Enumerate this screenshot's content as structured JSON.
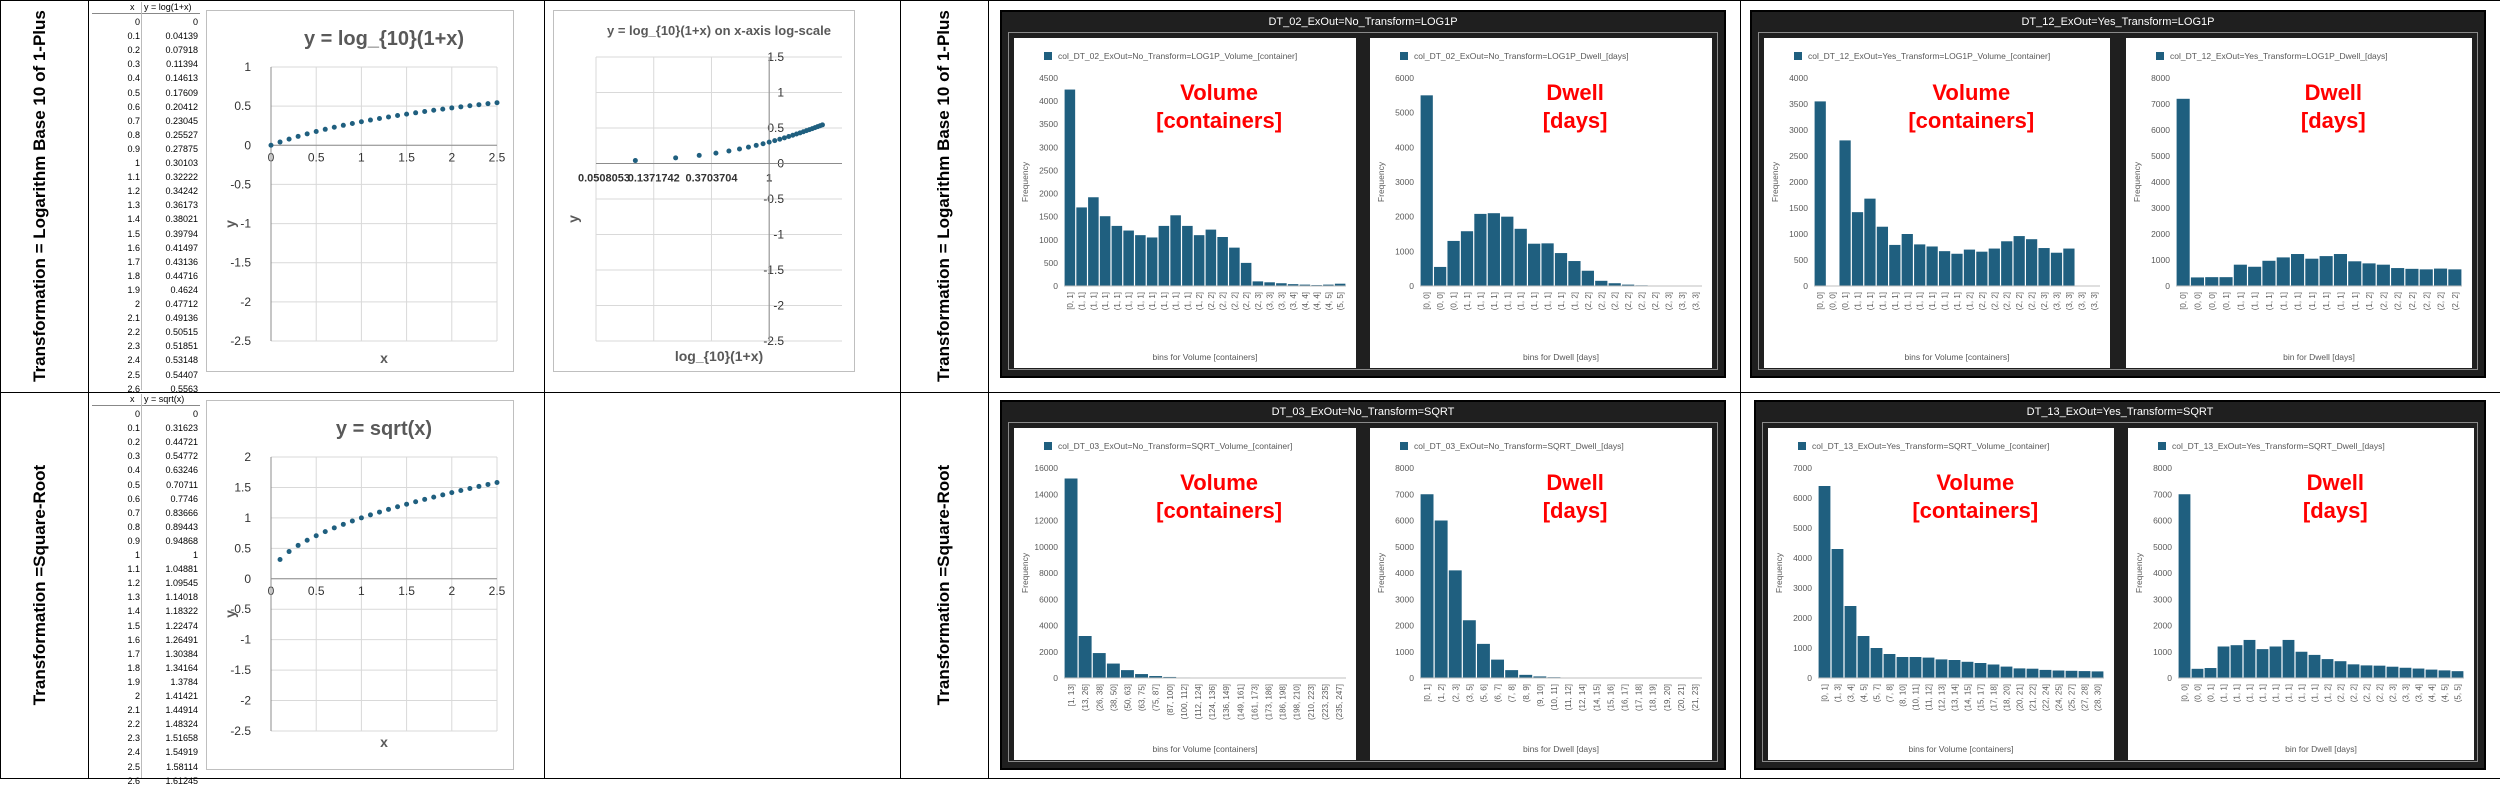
{
  "rows": [
    {
      "label": "Transformation = Logarithm Base 10 of 1-Plus"
    },
    {
      "label": "Transformation =Square-Root"
    }
  ],
  "tables": [
    {
      "header_x": "x",
      "header_y": "y = log(1+x)",
      "rows": [
        [
          "0",
          "0"
        ],
        [
          "0.1",
          "0.04139"
        ],
        [
          "0.2",
          "0.07918"
        ],
        [
          "0.3",
          "0.11394"
        ],
        [
          "0.4",
          "0.14613"
        ],
        [
          "0.5",
          "0.17609"
        ],
        [
          "0.6",
          "0.20412"
        ],
        [
          "0.7",
          "0.23045"
        ],
        [
          "0.8",
          "0.25527"
        ],
        [
          "0.9",
          "0.27875"
        ],
        [
          "1",
          "0.30103"
        ],
        [
          "1.1",
          "0.32222"
        ],
        [
          "1.2",
          "0.34242"
        ],
        [
          "1.3",
          "0.36173"
        ],
        [
          "1.4",
          "0.38021"
        ],
        [
          "1.5",
          "0.39794"
        ],
        [
          "1.6",
          "0.41497"
        ],
        [
          "1.7",
          "0.43136"
        ],
        [
          "1.8",
          "0.44716"
        ],
        [
          "1.9",
          "0.4624"
        ],
        [
          "2",
          "0.47712"
        ],
        [
          "2.1",
          "0.49136"
        ],
        [
          "2.2",
          "0.50515"
        ],
        [
          "2.3",
          "0.51851"
        ],
        [
          "2.4",
          "0.53148"
        ],
        [
          "2.5",
          "0.54407"
        ],
        [
          "2.6",
          "0.5563"
        ]
      ]
    },
    {
      "header_x": "x",
      "header_y": "y = sqrt(x)",
      "rows": [
        [
          "0",
          "0"
        ],
        [
          "0.1",
          "0.31623"
        ],
        [
          "0.2",
          "0.44721"
        ],
        [
          "0.3",
          "0.54772"
        ],
        [
          "0.4",
          "0.63246"
        ],
        [
          "0.5",
          "0.70711"
        ],
        [
          "0.6",
          "0.7746"
        ],
        [
          "0.7",
          "0.83666"
        ],
        [
          "0.8",
          "0.89443"
        ],
        [
          "0.9",
          "0.94868"
        ],
        [
          "1",
          "1"
        ],
        [
          "1.1",
          "1.04881"
        ],
        [
          "1.2",
          "1.09545"
        ],
        [
          "1.3",
          "1.14018"
        ],
        [
          "1.4",
          "1.18322"
        ],
        [
          "1.5",
          "1.22474"
        ],
        [
          "1.6",
          "1.26491"
        ],
        [
          "1.7",
          "1.30384"
        ],
        [
          "1.8",
          "1.34164"
        ],
        [
          "1.9",
          "1.3784"
        ],
        [
          "2",
          "1.41421"
        ],
        [
          "2.1",
          "1.44914"
        ],
        [
          "2.2",
          "1.48324"
        ],
        [
          "2.3",
          "1.51658"
        ],
        [
          "2.4",
          "1.54919"
        ],
        [
          "2.5",
          "1.58114"
        ],
        [
          "2.6",
          "1.61245"
        ]
      ]
    }
  ],
  "panels": [
    {
      "title": "DT_02_ExOut=No_Transform=LOG1P"
    },
    {
      "title": "DT_12_ExOut=Yes_Transform=LOG1P"
    },
    {
      "title": "DT_03_ExOut=No_Transform=SQRT"
    },
    {
      "title": "DT_13_ExOut=Yes_Transform=SQRT"
    }
  ],
  "colors": {
    "bar": "#1f5f7f",
    "marker": "#1f5f7f",
    "overlay": "#ff0000",
    "panel": "#1f1f1f"
  },
  "chart_data": [
    {
      "type": "scatter",
      "title": "y = log_{10}(1+x)",
      "xlabel": "x",
      "ylabel": "y",
      "xlim": [
        0,
        2.5
      ],
      "ylim": [
        -2.5,
        1
      ],
      "xticks": [
        "0",
        "0.5",
        "1",
        "1.5",
        "2",
        "2.5"
      ],
      "yticks": [
        "1",
        "0.5",
        "0",
        "-0.5",
        "-1",
        "-1.5",
        "-2",
        "-2.5"
      ],
      "grid": true,
      "x": [
        0,
        0.1,
        0.2,
        0.3,
        0.4,
        0.5,
        0.6,
        0.7,
        0.8,
        0.9,
        1,
        1.1,
        1.2,
        1.3,
        1.4,
        1.5,
        1.6,
        1.7,
        1.8,
        1.9,
        2,
        2.1,
        2.2,
        2.3,
        2.4,
        2.5
      ],
      "y": [
        0,
        0.04139,
        0.07918,
        0.11394,
        0.14613,
        0.17609,
        0.20412,
        0.23045,
        0.25527,
        0.27875,
        0.30103,
        0.32222,
        0.34242,
        0.36173,
        0.38021,
        0.39794,
        0.41497,
        0.43136,
        0.44716,
        0.4624,
        0.47712,
        0.49136,
        0.50515,
        0.51851,
        0.53148,
        0.54407
      ]
    },
    {
      "type": "scatter",
      "title": "y = log_{10}(1+x) on x-axis log-scale",
      "xlabel": "log_{10}(1+x)",
      "ylabel": "y",
      "xscale": "log",
      "xlim": [
        0.0508053,
        3.5
      ],
      "ylim": [
        -2.5,
        1.5
      ],
      "xticks": [
        "0.0508053",
        "0.1371742",
        "0.3703704",
        "1"
      ],
      "yticks": [
        "1.5",
        "1",
        "0.5",
        "0",
        "-0.5",
        "-1",
        "-1.5",
        "-2",
        "-2.5"
      ],
      "grid": true,
      "x": [
        0.1,
        0.2,
        0.3,
        0.4,
        0.5,
        0.6,
        0.7,
        0.8,
        0.9,
        1,
        1.1,
        1.2,
        1.3,
        1.4,
        1.5,
        1.6,
        1.7,
        1.8,
        1.9,
        2,
        2.1,
        2.2,
        2.3,
        2.4,
        2.5
      ],
      "y": [
        0.04139,
        0.07918,
        0.11394,
        0.14613,
        0.17609,
        0.20412,
        0.23045,
        0.25527,
        0.27875,
        0.30103,
        0.32222,
        0.34242,
        0.36173,
        0.38021,
        0.39794,
        0.41497,
        0.43136,
        0.44716,
        0.4624,
        0.47712,
        0.49136,
        0.50515,
        0.51851,
        0.53148,
        0.54407
      ]
    },
    {
      "type": "scatter",
      "title": "y = sqrt(x)",
      "xlabel": "x",
      "ylabel": "y",
      "xlim": [
        0,
        2.5
      ],
      "ylim": [
        -2.5,
        2
      ],
      "xticks": [
        "0",
        "0.5",
        "1",
        "1.5",
        "2",
        "2.5"
      ],
      "yticks": [
        "2",
        "1.5",
        "1",
        "0.5",
        "0",
        "-0.5",
        "-1",
        "-1.5",
        "-2",
        "-2.5"
      ],
      "grid": true,
      "x": [
        0.1,
        0.2,
        0.3,
        0.4,
        0.5,
        0.6,
        0.7,
        0.8,
        0.9,
        1,
        1.1,
        1.2,
        1.3,
        1.4,
        1.5,
        1.6,
        1.7,
        1.8,
        1.9,
        2,
        2.1,
        2.2,
        2.3,
        2.4,
        2.5
      ],
      "y": [
        0.31623,
        0.44721,
        0.54772,
        0.63246,
        0.70711,
        0.7746,
        0.83666,
        0.89443,
        0.94868,
        1,
        1.04881,
        1.09545,
        1.14018,
        1.18322,
        1.22474,
        1.26491,
        1.30384,
        1.34164,
        1.3784,
        1.41421,
        1.44914,
        1.48324,
        1.51658,
        1.54919,
        1.58114
      ]
    },
    {
      "type": "bar",
      "legend": "col_DT_02_ExOut=No_Transform=LOG1P_Volume_[container]",
      "overlay": [
        "Volume",
        "[containers]"
      ],
      "xlabel": "bins for Volume [containers]",
      "ylabel": "Frequency",
      "ylim": [
        0,
        4500
      ],
      "yticks": [
        "4500",
        "4000",
        "3500",
        "3000",
        "2500",
        "2000",
        "1500",
        "1000",
        "500",
        "0"
      ],
      "categories": [
        "[0, 1]",
        "(1, 1]",
        "(1, 1]",
        "(1, 1]",
        "(1, 1]",
        "(1, 1]",
        "(1, 1]",
        "(1, 1]",
        "(1, 1]",
        "(1, 1]",
        "(1, 1]",
        "(1, 2]",
        "(2, 2]",
        "(2, 2]",
        "(2, 2]",
        "(2, 2]",
        "(2, 3]",
        "(3, 3]",
        "(3, 3]",
        "(3, 4]",
        "(4, 4]",
        "(4, 4]",
        "(4, 5]",
        "(5, 5]"
      ],
      "values": [
        4250,
        1700,
        1920,
        1510,
        1300,
        1200,
        1100,
        1050,
        1300,
        1530,
        1300,
        1100,
        1220,
        1060,
        830,
        500,
        100,
        80,
        60,
        40,
        30,
        20,
        30,
        50
      ]
    },
    {
      "type": "bar",
      "legend": "col_DT_02_ExOut=No_Transform=LOG1P_Dwell_[days]",
      "overlay": [
        "Dwell",
        "[days]"
      ],
      "xlabel": "bins for Dwell [days]",
      "ylabel": "Frequency",
      "ylim": [
        0,
        6000
      ],
      "yticks": [
        "6000",
        "5000",
        "4000",
        "3000",
        "2000",
        "1000",
        "0"
      ],
      "categories": [
        "[0, 0]",
        "(0, 0]",
        "(0, 1]",
        "(1, 1]",
        "(1, 1]",
        "(1, 1]",
        "(1, 1]",
        "(1, 1]",
        "(1, 1]",
        "(1, 1]",
        "(1, 1]",
        "(1, 2]",
        "(2, 2]",
        "(2, 2]",
        "(2, 2]",
        "(2, 2]",
        "(2, 2]",
        "(2, 2]",
        "(2, 3]",
        "(3, 3]",
        "(3, 3]"
      ],
      "values": [
        5500,
        550,
        1300,
        1580,
        2080,
        2100,
        2000,
        1650,
        1220,
        1230,
        950,
        720,
        440,
        150,
        80,
        40,
        20,
        10,
        5,
        5,
        5
      ]
    },
    {
      "type": "bar",
      "legend": "col_DT_12_ExOut=Yes_Transform=LOG1P_Volume_[container]",
      "overlay": [
        "Volume",
        "[containers]"
      ],
      "xlabel": "bins for Volume [containers]",
      "ylabel": "Frequency",
      "ylim": [
        0,
        4000
      ],
      "yticks": [
        "4000",
        "3500",
        "3000",
        "2500",
        "2000",
        "1500",
        "1000",
        "500",
        "0"
      ],
      "categories": [
        "[0, 0]",
        "(0, 0]",
        "(0, 1]",
        "(1, 1]",
        "(1, 1]",
        "(1, 1]",
        "(1, 1]",
        "(1, 1]",
        "(1, 1]",
        "(1, 1]",
        "(1, 1]",
        "(1, 1]",
        "(1, 2]",
        "(2, 2]",
        "(2, 2]",
        "(2, 2]",
        "(2, 2]",
        "(2, 2]",
        "(2, 3]",
        "(3, 3]",
        "(3, 3]",
        "(3, 3]",
        "(3, 3]"
      ],
      "values": [
        3550,
        0,
        2800,
        1420,
        1680,
        1140,
        790,
        1000,
        800,
        760,
        670,
        620,
        700,
        660,
        720,
        860,
        960,
        900,
        730,
        640,
        720,
        0,
        0
      ]
    },
    {
      "type": "bar",
      "legend": "col_DT_12_ExOut=Yes_Transform=LOG1P_Dwell_[days]",
      "overlay": [
        "Dwell",
        "[days]"
      ],
      "xlabel": "bin for Dwell [days]",
      "ylabel": "Frequency",
      "ylim": [
        0,
        8000
      ],
      "yticks": [
        "8000",
        "7000",
        "6000",
        "5000",
        "4000",
        "3000",
        "2000",
        "1000",
        "0"
      ],
      "categories": [
        "[0, 0]",
        "(0, 0]",
        "(0, 0]",
        "(0, 1]",
        "(1, 1]",
        "(1, 1]",
        "(1, 1]",
        "(1, 1]",
        "(1, 1]",
        "(1, 1]",
        "(1, 1]",
        "(1, 1]",
        "(1, 1]",
        "(1, 2]",
        "(2, 2]",
        "(2, 2]",
        "(2, 2]",
        "(2, 2]",
        "(2, 2]",
        "(2, 2]"
      ],
      "values": [
        7200,
        330,
        340,
        340,
        820,
        740,
        970,
        1100,
        1230,
        1050,
        1150,
        1230,
        950,
        870,
        820,
        690,
        660,
        640,
        670,
        640
      ]
    },
    {
      "type": "bar",
      "legend": "col_DT_03_ExOut=No_Transform=SQRT_Volume_[container]",
      "overlay": [
        "Volume",
        "[containers]"
      ],
      "xlabel": "bins for Volume [containers]",
      "ylabel": "Frequency",
      "ylim": [
        0,
        16000
      ],
      "yticks": [
        "16000",
        "14000",
        "12000",
        "10000",
        "8000",
        "6000",
        "4000",
        "2000",
        "0"
      ],
      "categories": [
        "[1, 13]",
        "(13, 26]",
        "(26, 38]",
        "(38, 50]",
        "(50, 63]",
        "(63, 75]",
        "(75, 87]",
        "(87, 100]",
        "(100, 112]",
        "(112, 124]",
        "(124, 136]",
        "(136, 149]",
        "(149, 161]",
        "(161, 173]",
        "(173, 186]",
        "(186, 198]",
        "(198, 210]",
        "(210, 223]",
        "(223, 235]",
        "(235, 247]"
      ],
      "values": [
        15200,
        3200,
        1900,
        1100,
        600,
        300,
        150,
        80,
        40,
        20,
        10,
        5,
        5,
        3,
        2,
        2,
        1,
        1,
        1,
        1
      ]
    },
    {
      "type": "bar",
      "legend": "col_DT_03_ExOut=No_Transform=SQRT_Dwell_[days]",
      "overlay": [
        "Dwell",
        "[days]"
      ],
      "xlabel": "bins for Dwell [days]",
      "ylabel": "Frequency",
      "ylim": [
        0,
        8000
      ],
      "yticks": [
        "8000",
        "7000",
        "6000",
        "5000",
        "4000",
        "3000",
        "2000",
        "1000",
        "0"
      ],
      "categories": [
        "[0, 1]",
        "(1, 2]",
        "(2, 3]",
        "(3, 5]",
        "(5, 6]",
        "(6, 7]",
        "(7, 8]",
        "(8, 9]",
        "(9, 10]",
        "(10, 11]",
        "(11, 12]",
        "(12, 14]",
        "(14, 15]",
        "(15, 16]",
        "(16, 17]",
        "(17, 18]",
        "(18, 19]",
        "(19, 20]",
        "(20, 21]",
        "(21, 23]"
      ],
      "values": [
        7000,
        6000,
        4100,
        2200,
        1300,
        700,
        300,
        120,
        60,
        30,
        15,
        8,
        5,
        3,
        2,
        1,
        1,
        1,
        1,
        1
      ]
    },
    {
      "type": "bar",
      "legend": "col_DT_13_ExOut=Yes_Transform=SQRT_Volume_[container]",
      "overlay": [
        "Volume",
        "[containers]"
      ],
      "xlabel": "bins for Volume [containers]",
      "ylabel": "Frequency",
      "ylim": [
        0,
        7000
      ],
      "yticks": [
        "7000",
        "6000",
        "5000",
        "4000",
        "3000",
        "2000",
        "1000",
        "0"
      ],
      "categories": [
        "[0, 1]",
        "(1, 3]",
        "(3, 4]",
        "(4, 5]",
        "(5, 7]",
        "(7, 8]",
        "(8, 10]",
        "(10, 11]",
        "(11, 12]",
        "(12, 13]",
        "(13, 14]",
        "(14, 15]",
        "(15, 17]",
        "(17, 18]",
        "(18, 20]",
        "(20, 21]",
        "(21, 22]",
        "(22, 24]",
        "(24, 25]",
        "(25, 27]",
        "(27, 28]",
        "(28, 30]"
      ],
      "values": [
        6400,
        4300,
        2400,
        1400,
        1000,
        800,
        700,
        700,
        680,
        620,
        600,
        540,
        500,
        450,
        380,
        320,
        310,
        270,
        250,
        240,
        230,
        220
      ]
    },
    {
      "type": "bar",
      "legend": "col_DT_13_ExOut=Yes_Transform=SQRT_Dwell_[days]",
      "overlay": [
        "Dwell",
        "[days]"
      ],
      "xlabel": "bin for Dwell [days]",
      "ylabel": "Frequency",
      "ylim": [
        0,
        8000
      ],
      "yticks": [
        "8000",
        "7000",
        "6000",
        "5000",
        "4000",
        "3000",
        "2000",
        "1000",
        "0"
      ],
      "categories": [
        "[0, 0]",
        "(0, 0]",
        "(0, 1]",
        "(1, 1]",
        "(1, 1]",
        "(1, 1]",
        "(1, 1]",
        "(1, 1]",
        "(1, 1]",
        "(1, 1]",
        "(1, 1]",
        "(1, 2]",
        "(2, 2]",
        "(2, 2]",
        "(2, 2]",
        "(2, 2]",
        "(2, 3]",
        "(3, 3]",
        "(3, 4]",
        "(4, 4]",
        "(4, 5]",
        "(5, 5]"
      ],
      "values": [
        7000,
        350,
        380,
        1200,
        1250,
        1450,
        1100,
        1200,
        1450,
        1000,
        880,
        720,
        640,
        520,
        480,
        470,
        430,
        390,
        360,
        320,
        290,
        260
      ]
    }
  ]
}
